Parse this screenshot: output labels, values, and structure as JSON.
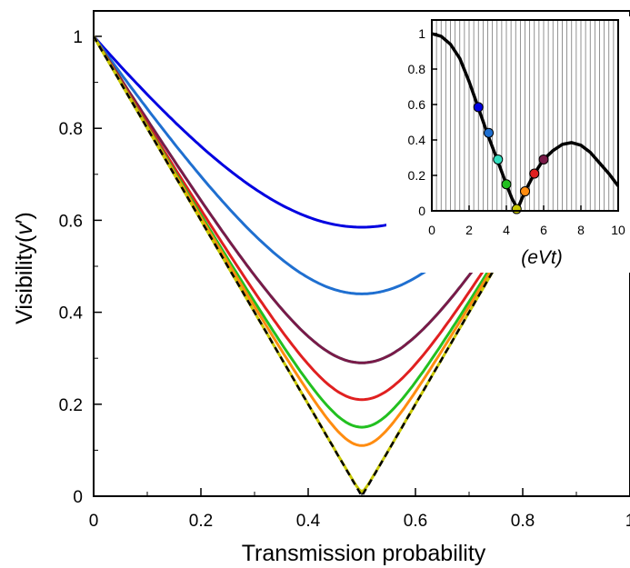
{
  "chart_data": [
    {
      "type": "line",
      "xlabel": "Transmission probability",
      "ylabel": "Visibility(",
      "ylabel_symbol": "v",
      "ylabel_prime": "′",
      "ylabel_close": ")",
      "xlim": [
        0,
        1
      ],
      "ylim": [
        0,
        1.05
      ],
      "x_ticks": [
        "0",
        "0.2",
        "0.4",
        "0.6",
        "0.8",
        "1"
      ],
      "y_ticks": [
        "0",
        "0.2",
        "0.4",
        "0.6",
        "0.8",
        "1"
      ],
      "grid": false,
      "series": [
        {
          "color": "#0000e0",
          "min_visibility": 0.585
        },
        {
          "color": "#1f6fd0",
          "min_visibility": 0.44
        },
        {
          "color": "#33e0c0",
          "min_visibility": 0.29
        },
        {
          "color": "#7a1a48",
          "min_visibility": 0.29
        },
        {
          "color": "#e02020",
          "min_visibility": 0.21
        },
        {
          "color": "#22c020",
          "min_visibility": 0.15
        },
        {
          "color": "#ff8c10",
          "min_visibility": 0.11
        },
        {
          "color": "#c8c800",
          "min_visibility": 0.01
        },
        {
          "color": "#000000",
          "dashed": true,
          "min_visibility": 0.0
        }
      ]
    },
    {
      "type": "line",
      "inset": true,
      "xlabel": "(eVt)",
      "xlim": [
        0,
        10
      ],
      "ylim": [
        0,
        1.05
      ],
      "x_ticks": [
        "0",
        "2",
        "4",
        "6",
        "8",
        "10"
      ],
      "y_ticks": [
        "0",
        "0.2",
        "0.4",
        "0.6",
        "0.8",
        "1"
      ],
      "grid": "vertical",
      "curve": {
        "x": [
          0,
          0.5,
          1,
          1.5,
          2,
          2.5,
          3,
          3.5,
          4,
          4.3,
          4.6,
          5,
          5.5,
          6,
          6.5,
          7,
          7.5,
          8,
          8.5,
          9,
          9.5,
          10
        ],
        "y": [
          1,
          0.985,
          0.94,
          0.86,
          0.73,
          0.58,
          0.43,
          0.29,
          0.15,
          0.07,
          0.01,
          0.11,
          0.21,
          0.29,
          0.34,
          0.375,
          0.385,
          0.37,
          0.33,
          0.27,
          0.21,
          0.14
        ]
      },
      "markers": [
        {
          "x": 2.5,
          "y": 0.585,
          "color": "#0000e0"
        },
        {
          "x": 3.05,
          "y": 0.44,
          "color": "#1f6fd0"
        },
        {
          "x": 3.55,
          "y": 0.29,
          "color": "#33e0c0"
        },
        {
          "x": 4.0,
          "y": 0.15,
          "color": "#22c020"
        },
        {
          "x": 4.55,
          "y": 0.01,
          "color": "#c8c800"
        },
        {
          "x": 5.0,
          "y": 0.11,
          "color": "#ff8c10"
        },
        {
          "x": 5.5,
          "y": 0.21,
          "color": "#e02020"
        },
        {
          "x": 6.0,
          "y": 0.29,
          "color": "#7a1a48"
        }
      ]
    }
  ]
}
